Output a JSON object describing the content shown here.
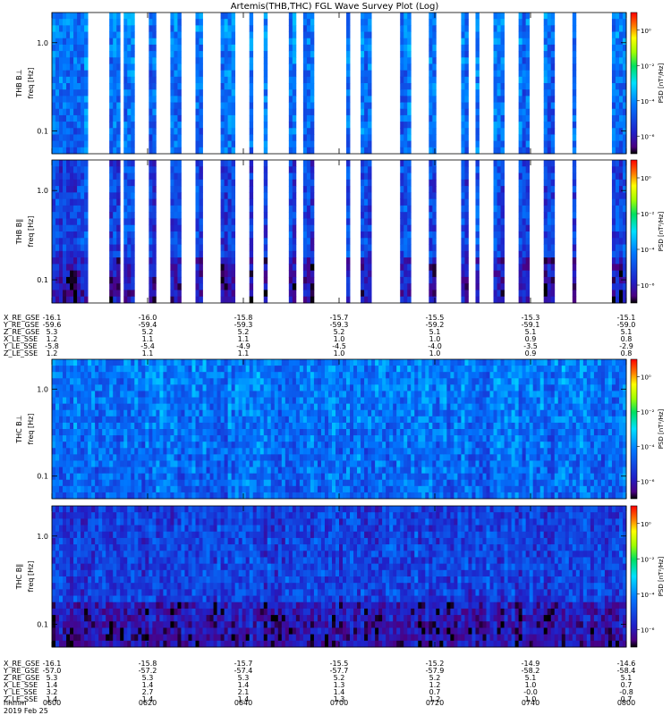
{
  "chart_data": {
    "type": "heatmap",
    "title": "Artemis(THB,THC) FGL Wave Survey Plot (Log)",
    "date_label": "2019 Feb 25",
    "x_time_label": "hhmm",
    "time_ticks": [
      "0600",
      "0620",
      "0640",
      "0700",
      "0720",
      "0740",
      "0800"
    ],
    "colorbar": {
      "label": "PSD [nT²/Hz]",
      "tick_labels": [
        "10⁰",
        "10⁻²",
        "10⁻⁴",
        "10⁻⁶"
      ],
      "log_min": -7,
      "log_max": 1
    },
    "yaxis": {
      "scale": "log",
      "unit_label": "freq [Hz]",
      "tick_labels": [
        "1.0",
        "0.1"
      ],
      "range_hz": [
        0.055,
        2.2
      ]
    },
    "panels": [
      {
        "name": "THB B⊥",
        "probe": "THB",
        "gaps": [
          [
            0.065,
            0.1
          ],
          [
            0.117,
            0.127
          ],
          [
            0.143,
            0.166
          ],
          [
            0.182,
            0.205
          ],
          [
            0.228,
            0.248
          ],
          [
            0.263,
            0.293
          ],
          [
            0.317,
            0.341
          ],
          [
            0.35,
            0.37
          ],
          [
            0.376,
            0.414
          ],
          [
            0.422,
            0.438
          ],
          [
            0.458,
            0.51
          ],
          [
            0.52,
            0.536
          ],
          [
            0.559,
            0.606
          ],
          [
            0.626,
            0.655
          ],
          [
            0.67,
            0.71
          ],
          [
            0.727,
            0.737
          ],
          [
            0.742,
            0.77
          ],
          [
            0.789,
            0.811
          ],
          [
            0.83,
            0.855
          ],
          [
            0.875,
            0.904
          ],
          [
            0.915,
            0.975
          ]
        ]
      },
      {
        "name": "THB B∥",
        "probe": "THB",
        "gaps": [
          [
            0.065,
            0.1
          ],
          [
            0.117,
            0.127
          ],
          [
            0.143,
            0.166
          ],
          [
            0.182,
            0.205
          ],
          [
            0.228,
            0.248
          ],
          [
            0.263,
            0.293
          ],
          [
            0.317,
            0.341
          ],
          [
            0.35,
            0.37
          ],
          [
            0.376,
            0.414
          ],
          [
            0.422,
            0.438
          ],
          [
            0.458,
            0.51
          ],
          [
            0.52,
            0.536
          ],
          [
            0.559,
            0.606
          ],
          [
            0.626,
            0.655
          ],
          [
            0.67,
            0.71
          ],
          [
            0.727,
            0.737
          ],
          [
            0.742,
            0.77
          ],
          [
            0.789,
            0.811
          ],
          [
            0.83,
            0.855
          ],
          [
            0.875,
            0.904
          ],
          [
            0.915,
            0.975
          ]
        ]
      },
      {
        "name": "THC B⊥",
        "probe": "THC",
        "gaps": []
      },
      {
        "name": "THC B∥",
        "probe": "THC",
        "gaps": []
      }
    ],
    "ephemeris": [
      {
        "probe": "THB",
        "rows": [
          {
            "label": "X_RE_GSE",
            "values": [
              "-16.1",
              "-16.0",
              "-15.8",
              "-15.7",
              "-15.5",
              "-15.3",
              "-15.1"
            ]
          },
          {
            "label": "Y_RE_GSE",
            "values": [
              "-59.6",
              "-59.4",
              "-59.3",
              "-59.3",
              "-59.2",
              "-59.1",
              "-59.0"
            ]
          },
          {
            "label": "Z_RE_GSE",
            "values": [
              "5.3",
              "5.2",
              "5.2",
              "5.2",
              "5.1",
              "5.1",
              "5.1"
            ]
          },
          {
            "label": "X_LE_SSE",
            "values": [
              "1.2",
              "1.1",
              "1.1",
              "1.0",
              "1.0",
              "0.9",
              "0.8"
            ]
          },
          {
            "label": "Y_LE_SSE",
            "values": [
              "-5.8",
              "-5.4",
              "-4.9",
              "-4.5",
              "-4.0",
              "-3.5",
              "-2.9"
            ]
          },
          {
            "label": "Z_LE_SSE",
            "values": [
              "1.2",
              "1.1",
              "1.1",
              "1.0",
              "1.0",
              "0.9",
              "0.8"
            ]
          }
        ]
      },
      {
        "probe": "THC",
        "rows": [
          {
            "label": "X_RE_GSE",
            "values": [
              "-16.1",
              "-15.8",
              "-15.7",
              "-15.5",
              "-15.2",
              "-14.9",
              "-14.6"
            ]
          },
          {
            "label": "Y_RE_GSE",
            "values": [
              "-57.0",
              "-57.2",
              "-57.4",
              "-57.7",
              "-57.9",
              "-58.2",
              "-58.4"
            ]
          },
          {
            "label": "Z_RE_GSE",
            "values": [
              "5.3",
              "5.3",
              "5.3",
              "5.2",
              "5.2",
              "5.1",
              "5.1"
            ]
          },
          {
            "label": "X_LE_SSE",
            "values": [
              "1.4",
              "1.4",
              "1.4",
              "1.3",
              "1.2",
              "1.0",
              "0.7"
            ]
          },
          {
            "label": "Y_LE_SSE",
            "values": [
              "3.2",
              "2.7",
              "2.1",
              "1.4",
              "0.7",
              "-0.0",
              "-0.8"
            ]
          },
          {
            "label": "Z_LE_SSE",
            "values": [
              "1.4",
              "1.4",
              "1.4",
              "1.3",
              "1.2",
              "1.0",
              "0.7"
            ]
          }
        ]
      }
    ]
  }
}
